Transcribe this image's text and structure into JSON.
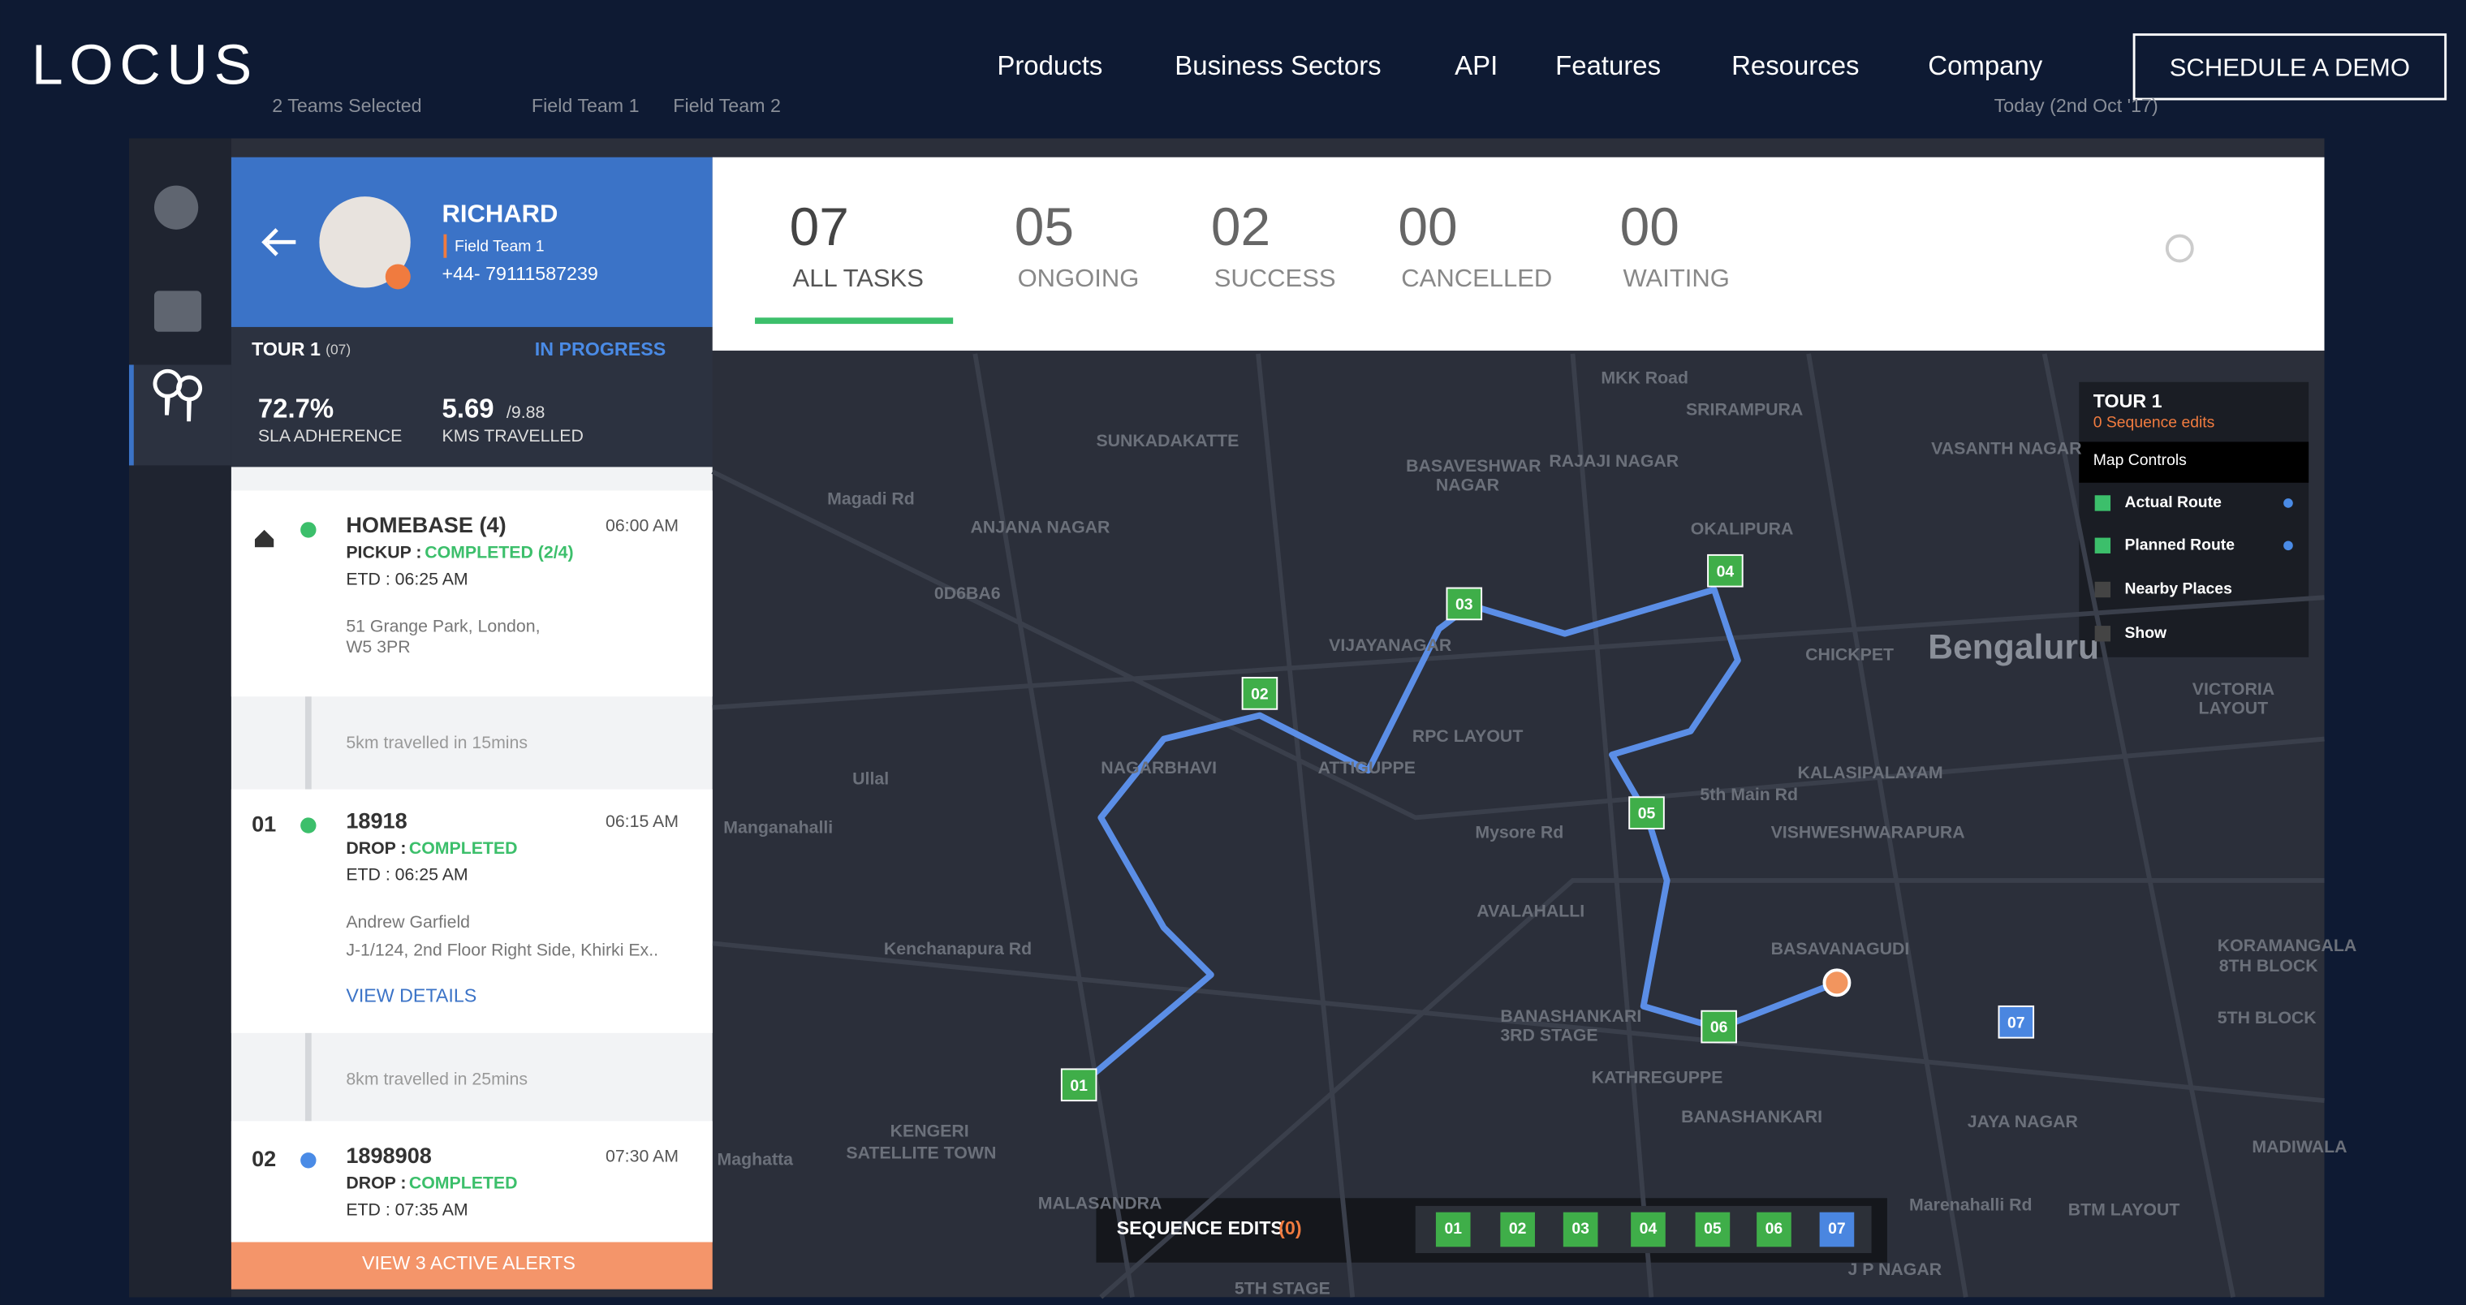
{
  "nav": {
    "logo": "LOCUS",
    "items": [
      "Products",
      "Business Sectors",
      "API",
      "Features",
      "Resources",
      "Company"
    ],
    "cta": "SCHEDULE A DEMO"
  },
  "toolbar": {
    "teams": "2 Teams Selected",
    "team_tags": [
      "Field Team 1",
      "Field Team 2"
    ],
    "date": "Today (2nd Oct '17)"
  },
  "agent": {
    "name": "RICHARD",
    "team": "Field Team 1",
    "phone": "+44- 79111587239"
  },
  "tour": {
    "name": "TOUR 1",
    "count": "(07)",
    "status": "IN PROGRESS",
    "sla": "72.7%",
    "sla_label": "SLA ADHERENCE",
    "kms": "5.69",
    "kms_total": "/9.88",
    "kms_label": "KMS TRAVELLED"
  },
  "stops": [
    {
      "title": "HOMEBASE (4)",
      "time": "06:00 AM",
      "type": "PICKUP :",
      "status": "COMPLETED (2/4)",
      "etd": "ETD : 06:25 AM",
      "address": [
        "51 Grange Park, London,",
        "W5 3PR"
      ]
    },
    {
      "index": "01",
      "title": "18918",
      "time": "06:15 AM",
      "type": "DROP :",
      "status": "COMPLETED",
      "etd": "ETD : 06:25 AM",
      "contact": "Andrew Garfield",
      "address": [
        "J-1/124, 2nd Floor Right Side, Khirki Ex.."
      ],
      "link": "VIEW DETAILS"
    },
    {
      "index": "02",
      "title": "1898908",
      "time": "07:30 AM",
      "type": "DROP :",
      "status": "COMPLETED",
      "etd": "ETD : 07:35 AM"
    }
  ],
  "travel_notes": [
    "5km travelled in 15mins",
    "8km travelled in 25mins"
  ],
  "alerts": "VIEW 3 ACTIVE ALERTS",
  "stats": [
    {
      "value": "07",
      "label": "ALL TASKS"
    },
    {
      "value": "05",
      "label": "ONGOING"
    },
    {
      "value": "02",
      "label": "SUCCESS"
    },
    {
      "value": "00",
      "label": "CANCELLED"
    },
    {
      "value": "00",
      "label": "WAITING"
    }
  ],
  "map": {
    "labels": [
      "SUNKADAKATTE",
      "BASAVESHWAR",
      "NAGAR",
      "RAJAJI NAGAR",
      "SRIRAMPURA",
      "MKK Road",
      "OKALIPURA",
      "ANJANA NAGAR",
      "VIJAYANAGAR",
      "0D6BA6",
      "NAGARBHAVI",
      "ATTIGUPPE",
      "RPC LAYOUT",
      "CHICKPET",
      "Bengaluru",
      "KALASIPALAYAM",
      "5th Main Rd",
      "VISHWESHWARAPURA",
      "Mysore Rd",
      "AVALAHALLI",
      "Ullal",
      "Manganahalli",
      "Kenchanapura Rd",
      "BASAVANAGUDI",
      "BANASHANKARI",
      "3RD STAGE",
      "KATHREGUPPE",
      "BANASHANKARI",
      "KENGERI",
      "SATELLITE TOWN",
      "Marenahalli Rd",
      "JAYA NAGAR",
      "BTM LAYOUT",
      "KORAMANGALA",
      "8TH BLOCK",
      "5TH BLOCK",
      "MADIWALA",
      "VICTORIA",
      "LAYOUT",
      "VASANTH NAGAR",
      "Magadi Rd",
      "J P NAGAR",
      "5TH STAGE",
      "MALASANDRA",
      "Maghatta"
    ],
    "markers": [
      "01",
      "02",
      "03",
      "04",
      "05",
      "06",
      "07"
    ],
    "panel": {
      "title": "TOUR 1",
      "subtitle": "0 Sequence edits",
      "controls": "Map Controls",
      "options": [
        "Actual Route",
        "Planned Route",
        "Nearby Places",
        "Show"
      ]
    },
    "sequence": {
      "title": "SEQUENCE EDITS",
      "count": "(0)"
    }
  }
}
